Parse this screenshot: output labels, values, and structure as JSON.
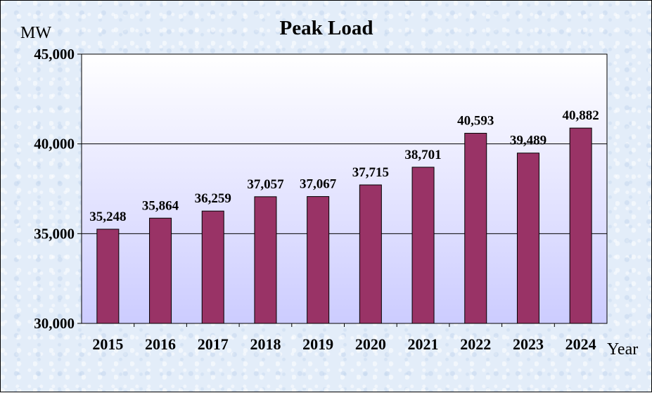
{
  "chart_data": {
    "type": "bar",
    "title": "Peak Load",
    "ylabel": "MW",
    "xlabel": "Year",
    "categories": [
      "2015",
      "2016",
      "2017",
      "2018",
      "2019",
      "2020",
      "2021",
      "2022",
      "2023",
      "2024"
    ],
    "values": [
      35248,
      35864,
      36259,
      37057,
      37067,
      37715,
      38701,
      40593,
      39489,
      40882
    ],
    "value_labels": [
      "35,248",
      "35,864",
      "36,259",
      "37,057",
      "37,067",
      "37,715",
      "38,701",
      "40,593",
      "39,489",
      "40,882"
    ],
    "ylim": [
      30000,
      45000
    ],
    "yticks": [
      30000,
      35000,
      40000,
      45000
    ],
    "ytick_labels": [
      "30,000",
      "35,000",
      "40,000",
      "45,000"
    ],
    "grid": true,
    "legend": "none",
    "bar_color": "#993366",
    "plot_gradient": [
      "#ffffff",
      "#ccccff"
    ]
  }
}
